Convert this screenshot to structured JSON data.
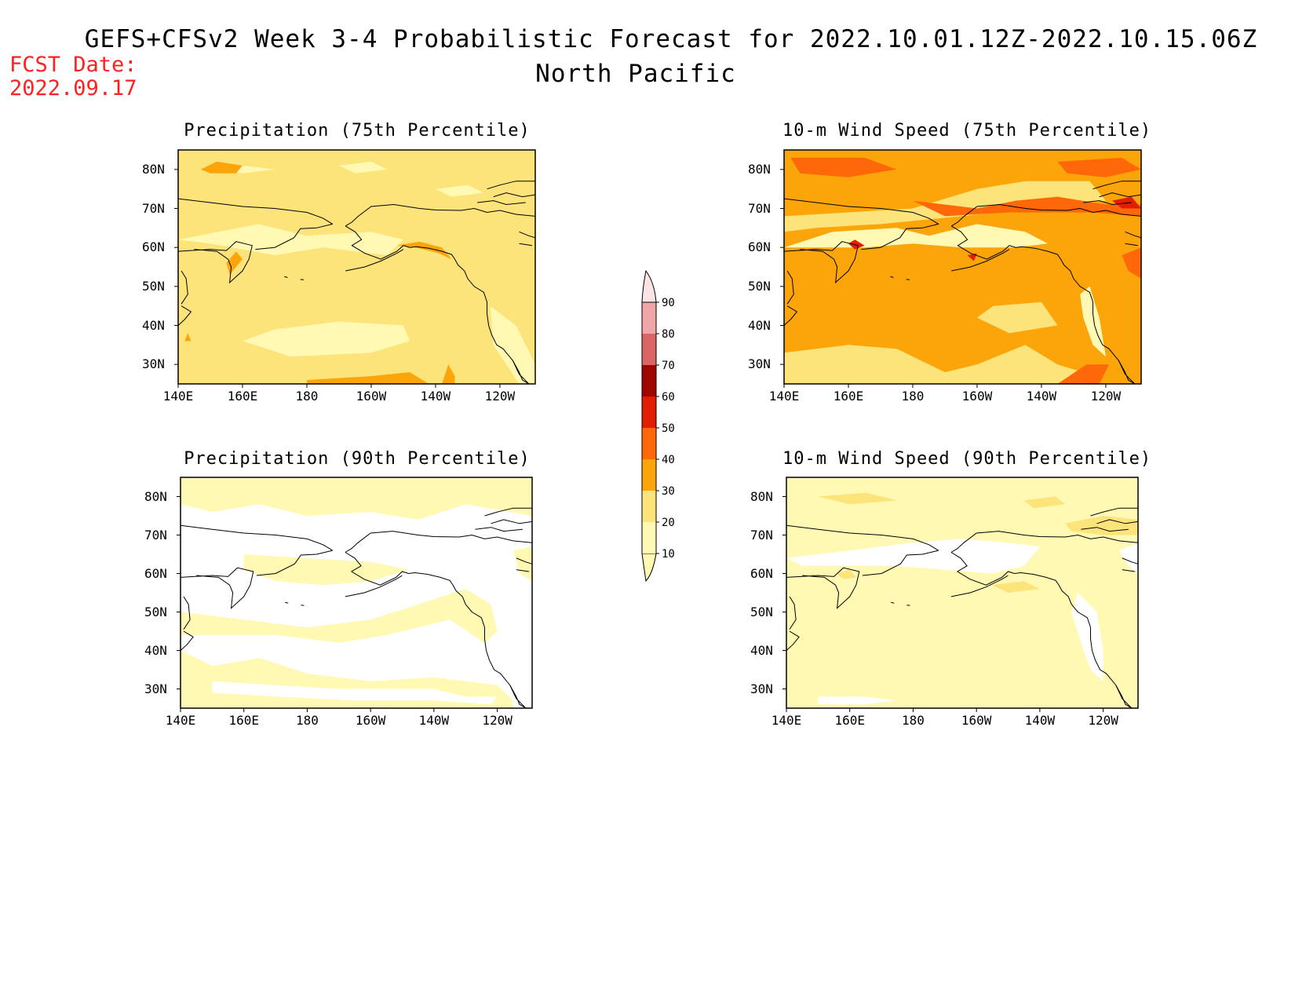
{
  "title": "GEFS+CFSv2 Week 3-4 Probabilistic Forecast for 2022.10.01.12Z-2022.10.15.06Z",
  "subtitle": "North Pacific",
  "fcst_date_label": "FCST Date:",
  "fcst_date_value": "2022.09.17",
  "colors": {
    "c10": "#fff9b3",
    "c20": "#fde47a",
    "c30": "#fca50a",
    "c40": "#fe6808",
    "c50": "#e21d02",
    "c60": "#a00600",
    "c70": "#d96565",
    "c80": "#f0a6a6",
    "c90": "#fde4e4",
    "coast": "#000000"
  },
  "colorbar": {
    "levels": [
      "10",
      "20",
      "30",
      "40",
      "50",
      "60",
      "70",
      "80",
      "90"
    ]
  },
  "axes": {
    "lat_labels": [
      "80N",
      "70N",
      "60N",
      "50N",
      "40N",
      "30N"
    ],
    "lon_labels": [
      "140E",
      "160E",
      "180",
      "160W",
      "140W",
      "120W"
    ]
  },
  "panels": [
    {
      "id": "p75",
      "title": "Precipitation (75th Percentile)",
      "dominant": "20-30"
    },
    {
      "id": "w75",
      "title": "10-m Wind Speed (75th Percentile)",
      "dominant": "30-40"
    },
    {
      "id": "p90",
      "title": "Precipitation (90th Percentile)",
      "dominant": "<10"
    },
    {
      "id": "w90",
      "title": "10-m Wind Speed (90th Percentile)",
      "dominant": "10-20"
    }
  ]
}
